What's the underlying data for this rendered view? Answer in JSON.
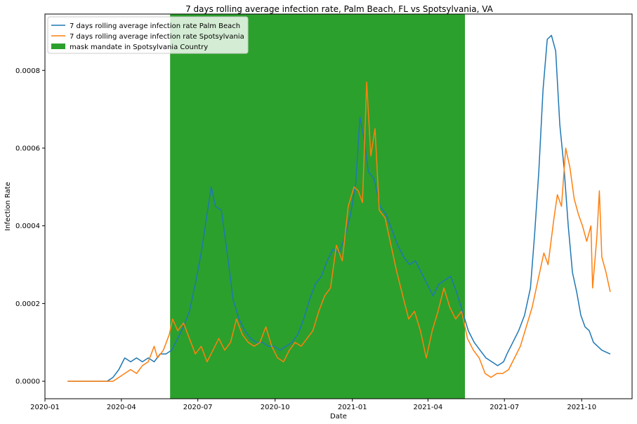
{
  "chart_data": {
    "type": "line",
    "title": "7 days rolling average infection rate, Palm Beach, FL vs Spotsylvania, VA",
    "xlabel": "Date",
    "ylabel": "Infection Rate",
    "x_range": [
      "2020-01-01",
      "2021-11-30"
    ],
    "ylim": [
      -4.5e-05,
      0.000945
    ],
    "grid": false,
    "legend_position": "top-left",
    "x_ticks": [
      "2020-01",
      "2020-04",
      "2020-07",
      "2020-10",
      "2021-01",
      "2021-04",
      "2021-07",
      "2021-10"
    ],
    "y_ticks": [
      "0.0000",
      "0.0002",
      "0.0004",
      "0.0006",
      "0.0008"
    ],
    "y_tick_values": [
      0.0,
      0.0002,
      0.0004,
      0.0006,
      0.0008
    ],
    "shaded_region": {
      "label": "mask mandate in Spotsylvania Country",
      "start": "2020-05-29",
      "end": "2021-05-15",
      "color": "#2ca02c"
    },
    "series": [
      {
        "name": "7 days rolling average infection rate Palm Beach",
        "color": "#1f77b4",
        "points": [
          [
            "2020-01-28",
            0.0
          ],
          [
            "2020-03-15",
            0.0
          ],
          [
            "2020-03-22",
            1e-05
          ],
          [
            "2020-03-29",
            3e-05
          ],
          [
            "2020-04-05",
            6e-05
          ],
          [
            "2020-04-12",
            5e-05
          ],
          [
            "2020-04-19",
            6e-05
          ],
          [
            "2020-04-26",
            5e-05
          ],
          [
            "2020-05-03",
            6e-05
          ],
          [
            "2020-05-10",
            5e-05
          ],
          [
            "2020-05-17",
            7e-05
          ],
          [
            "2020-05-24",
            7e-05
          ],
          [
            "2020-05-31",
            8e-05
          ],
          [
            "2020-06-07",
            0.00011
          ],
          [
            "2020-06-14",
            0.00014
          ],
          [
            "2020-06-21",
            0.00018
          ],
          [
            "2020-06-28",
            0.00025
          ],
          [
            "2020-07-05",
            0.00033
          ],
          [
            "2020-07-12",
            0.00043
          ],
          [
            "2020-07-17",
            0.0005
          ],
          [
            "2020-07-22",
            0.00045
          ],
          [
            "2020-07-29",
            0.00044
          ],
          [
            "2020-08-05",
            0.00033
          ],
          [
            "2020-08-12",
            0.00021
          ],
          [
            "2020-08-19",
            0.00016
          ],
          [
            "2020-08-26",
            0.00013
          ],
          [
            "2020-09-02",
            0.00011
          ],
          [
            "2020-09-09",
            0.0001
          ],
          [
            "2020-09-16",
            0.0001
          ],
          [
            "2020-09-23",
            9e-05
          ],
          [
            "2020-09-30",
            9e-05
          ],
          [
            "2020-10-07",
            8e-05
          ],
          [
            "2020-10-14",
            9e-05
          ],
          [
            "2020-10-21",
            0.0001
          ],
          [
            "2020-10-28",
            0.00012
          ],
          [
            "2020-11-04",
            0.00016
          ],
          [
            "2020-11-11",
            0.00021
          ],
          [
            "2020-11-18",
            0.00025
          ],
          [
            "2020-11-25",
            0.00027
          ],
          [
            "2020-12-02",
            0.00031
          ],
          [
            "2020-12-09",
            0.00034
          ],
          [
            "2020-12-16",
            0.00033
          ],
          [
            "2020-12-23",
            0.00037
          ],
          [
            "2020-12-30",
            0.00043
          ],
          [
            "2021-01-05",
            0.00051
          ],
          [
            "2021-01-10",
            0.00068
          ],
          [
            "2021-01-15",
            0.00062
          ],
          [
            "2021-01-20",
            0.00054
          ],
          [
            "2021-01-27",
            0.00052
          ],
          [
            "2021-02-03",
            0.00045
          ],
          [
            "2021-02-10",
            0.00043
          ],
          [
            "2021-02-17",
            0.00039
          ],
          [
            "2021-02-24",
            0.00035
          ],
          [
            "2021-03-03",
            0.00032
          ],
          [
            "2021-03-10",
            0.0003
          ],
          [
            "2021-03-17",
            0.00031
          ],
          [
            "2021-03-24",
            0.00028
          ],
          [
            "2021-03-31",
            0.00025
          ],
          [
            "2021-04-07",
            0.00022
          ],
          [
            "2021-04-14",
            0.00025
          ],
          [
            "2021-04-21",
            0.00026
          ],
          [
            "2021-04-28",
            0.00027
          ],
          [
            "2021-05-05",
            0.00023
          ],
          [
            "2021-05-12",
            0.00018
          ],
          [
            "2021-05-19",
            0.00013
          ],
          [
            "2021-05-26",
            0.0001
          ],
          [
            "2021-06-02",
            8e-05
          ],
          [
            "2021-06-09",
            6e-05
          ],
          [
            "2021-06-16",
            5e-05
          ],
          [
            "2021-06-23",
            4e-05
          ],
          [
            "2021-06-30",
            5e-05
          ],
          [
            "2021-07-04",
            7e-05
          ],
          [
            "2021-07-11",
            0.0001
          ],
          [
            "2021-07-18",
            0.00013
          ],
          [
            "2021-07-25",
            0.00017
          ],
          [
            "2021-08-01",
            0.00024
          ],
          [
            "2021-08-06",
            0.00038
          ],
          [
            "2021-08-11",
            0.00054
          ],
          [
            "2021-08-16",
            0.00075
          ],
          [
            "2021-08-21",
            0.00088
          ],
          [
            "2021-08-26",
            0.00089
          ],
          [
            "2021-08-31",
            0.00085
          ],
          [
            "2021-09-05",
            0.00066
          ],
          [
            "2021-09-10",
            0.00055
          ],
          [
            "2021-09-15",
            0.0004
          ],
          [
            "2021-09-20",
            0.00028
          ],
          [
            "2021-09-25",
            0.00023
          ],
          [
            "2021-09-30",
            0.00017
          ],
          [
            "2021-10-05",
            0.00014
          ],
          [
            "2021-10-10",
            0.00013
          ],
          [
            "2021-10-15",
            0.0001
          ],
          [
            "2021-10-20",
            9e-05
          ],
          [
            "2021-10-25",
            8e-05
          ],
          [
            "2021-11-04",
            7e-05
          ]
        ]
      },
      {
        "name": "7 days rolling average infection rate Spotsylvania",
        "color": "#ff7f0e",
        "points": [
          [
            "2020-01-28",
            0.0
          ],
          [
            "2020-03-22",
            0.0
          ],
          [
            "2020-03-29",
            1e-05
          ],
          [
            "2020-04-05",
            2e-05
          ],
          [
            "2020-04-12",
            3e-05
          ],
          [
            "2020-04-19",
            2e-05
          ],
          [
            "2020-04-26",
            4e-05
          ],
          [
            "2020-05-03",
            5e-05
          ],
          [
            "2020-05-10",
            9e-05
          ],
          [
            "2020-05-14",
            6e-05
          ],
          [
            "2020-05-21",
            8e-05
          ],
          [
            "2020-05-28",
            0.00012
          ],
          [
            "2020-06-01",
            0.00016
          ],
          [
            "2020-06-07",
            0.00013
          ],
          [
            "2020-06-14",
            0.00015
          ],
          [
            "2020-06-21",
            0.00011
          ],
          [
            "2020-06-28",
            7e-05
          ],
          [
            "2020-07-05",
            9e-05
          ],
          [
            "2020-07-12",
            5e-05
          ],
          [
            "2020-07-19",
            8e-05
          ],
          [
            "2020-07-26",
            0.00011
          ],
          [
            "2020-08-02",
            8e-05
          ],
          [
            "2020-08-09",
            0.0001
          ],
          [
            "2020-08-16",
            0.00016
          ],
          [
            "2020-08-23",
            0.00012
          ],
          [
            "2020-08-30",
            0.0001
          ],
          [
            "2020-09-06",
            9e-05
          ],
          [
            "2020-09-13",
            0.0001
          ],
          [
            "2020-09-20",
            0.00014
          ],
          [
            "2020-09-27",
            9e-05
          ],
          [
            "2020-10-04",
            6e-05
          ],
          [
            "2020-10-11",
            5e-05
          ],
          [
            "2020-10-18",
            8e-05
          ],
          [
            "2020-10-25",
            0.0001
          ],
          [
            "2020-11-01",
            9e-05
          ],
          [
            "2020-11-08",
            0.00011
          ],
          [
            "2020-11-15",
            0.00013
          ],
          [
            "2020-11-22",
            0.00018
          ],
          [
            "2020-11-29",
            0.00022
          ],
          [
            "2020-12-06",
            0.00024
          ],
          [
            "2020-12-13",
            0.00035
          ],
          [
            "2020-12-20",
            0.00031
          ],
          [
            "2020-12-27",
            0.00045
          ],
          [
            "2021-01-03",
            0.0005
          ],
          [
            "2021-01-08",
            0.00049
          ],
          [
            "2021-01-13",
            0.00046
          ],
          [
            "2021-01-18",
            0.00077
          ],
          [
            "2021-01-23",
            0.00058
          ],
          [
            "2021-01-28",
            0.00065
          ],
          [
            "2021-02-02",
            0.00044
          ],
          [
            "2021-02-09",
            0.00042
          ],
          [
            "2021-02-16",
            0.00035
          ],
          [
            "2021-02-23",
            0.00028
          ],
          [
            "2021-03-02",
            0.00022
          ],
          [
            "2021-03-09",
            0.00016
          ],
          [
            "2021-03-16",
            0.00018
          ],
          [
            "2021-03-23",
            0.00013
          ],
          [
            "2021-03-30",
            6e-05
          ],
          [
            "2021-04-06",
            0.00013
          ],
          [
            "2021-04-13",
            0.00018
          ],
          [
            "2021-04-20",
            0.00024
          ],
          [
            "2021-04-27",
            0.00019
          ],
          [
            "2021-05-04",
            0.00016
          ],
          [
            "2021-05-11",
            0.00018
          ],
          [
            "2021-05-18",
            0.00011
          ],
          [
            "2021-05-25",
            8e-05
          ],
          [
            "2021-06-01",
            6e-05
          ],
          [
            "2021-06-08",
            2e-05
          ],
          [
            "2021-06-15",
            1e-05
          ],
          [
            "2021-06-22",
            2e-05
          ],
          [
            "2021-06-29",
            2e-05
          ],
          [
            "2021-07-06",
            3e-05
          ],
          [
            "2021-07-13",
            6e-05
          ],
          [
            "2021-07-20",
            9e-05
          ],
          [
            "2021-07-27",
            0.00014
          ],
          [
            "2021-08-03",
            0.00019
          ],
          [
            "2021-08-10",
            0.00026
          ],
          [
            "2021-08-17",
            0.00033
          ],
          [
            "2021-08-22",
            0.0003
          ],
          [
            "2021-08-29",
            0.00042
          ],
          [
            "2021-09-02",
            0.00048
          ],
          [
            "2021-09-07",
            0.00045
          ],
          [
            "2021-09-12",
            0.0006
          ],
          [
            "2021-09-17",
            0.00055
          ],
          [
            "2021-09-22",
            0.00047
          ],
          [
            "2021-09-27",
            0.00043
          ],
          [
            "2021-10-02",
            0.0004
          ],
          [
            "2021-10-07",
            0.00036
          ],
          [
            "2021-10-12",
            0.0004
          ],
          [
            "2021-10-14",
            0.00024
          ],
          [
            "2021-10-19",
            0.00037
          ],
          [
            "2021-10-22",
            0.00049
          ],
          [
            "2021-10-25",
            0.00032
          ],
          [
            "2021-10-30",
            0.00028
          ],
          [
            "2021-11-04",
            0.00023
          ]
        ]
      }
    ]
  }
}
